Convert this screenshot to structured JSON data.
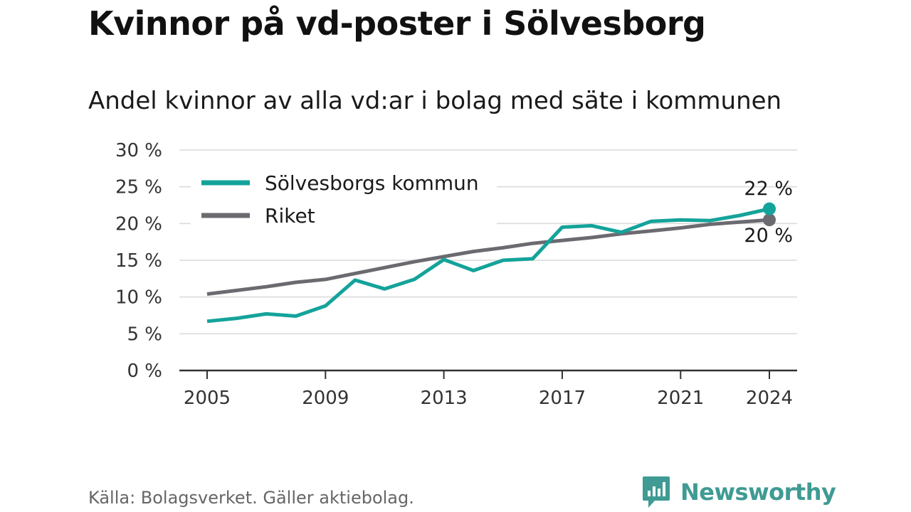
{
  "header": {
    "title": "Kvinnor på vd-poster i Sölvesborg",
    "subtitle": "Andel kvinnor av alla vd:ar i bolag med säte i kommunen"
  },
  "footer": {
    "source": "Källa: Bolagsverket. Gäller aktiebolag.",
    "brand": "Newsworthy"
  },
  "colors": {
    "kommun": "#14a39a",
    "riket": "#6b6a70",
    "grid": "#d9d9d9",
    "axis": "#333333",
    "brand": "#3f9b93"
  },
  "icons": {
    "brand_logo": "bar-chart-speech-bubble-icon"
  },
  "chart_data": {
    "type": "line",
    "title": "Kvinnor på vd-poster i Sölvesborg",
    "subtitle": "Andel kvinnor av alla vd:ar i bolag med säte i kommunen",
    "xlabel": "",
    "ylabel": "",
    "x": [
      2005,
      2006,
      2007,
      2008,
      2009,
      2010,
      2011,
      2012,
      2013,
      2014,
      2015,
      2016,
      2017,
      2018,
      2019,
      2020,
      2021,
      2022,
      2023,
      2024
    ],
    "x_ticks": [
      2005,
      2009,
      2013,
      2017,
      2021,
      2024
    ],
    "x_tick_labels": [
      "2005",
      "2009",
      "2013",
      "2017",
      "2021",
      "2024"
    ],
    "xlim": [
      2005,
      2024
    ],
    "ylim": [
      0,
      30
    ],
    "y_ticks": [
      0,
      5,
      10,
      15,
      20,
      25,
      30
    ],
    "y_tick_labels": [
      "0 %",
      "5 %",
      "10 %",
      "15 %",
      "20 %",
      "25 %",
      "30 %"
    ],
    "grid": true,
    "legend": "top-left",
    "series": [
      {
        "name": "Sölvesborgs kommun",
        "values": [
          6.7,
          7.1,
          7.7,
          7.4,
          8.8,
          12.3,
          11.1,
          12.4,
          15.1,
          13.6,
          15.0,
          15.2,
          19.5,
          19.7,
          18.8,
          20.3,
          20.5,
          20.4,
          21.1,
          22.0
        ],
        "end_label": "22 %"
      },
      {
        "name": "Riket",
        "values": [
          10.4,
          10.9,
          11.4,
          12.0,
          12.4,
          13.2,
          14.0,
          14.8,
          15.5,
          16.2,
          16.7,
          17.3,
          17.7,
          18.1,
          18.6,
          19.0,
          19.4,
          19.9,
          20.2,
          20.5
        ],
        "end_label": "20 %"
      }
    ]
  }
}
